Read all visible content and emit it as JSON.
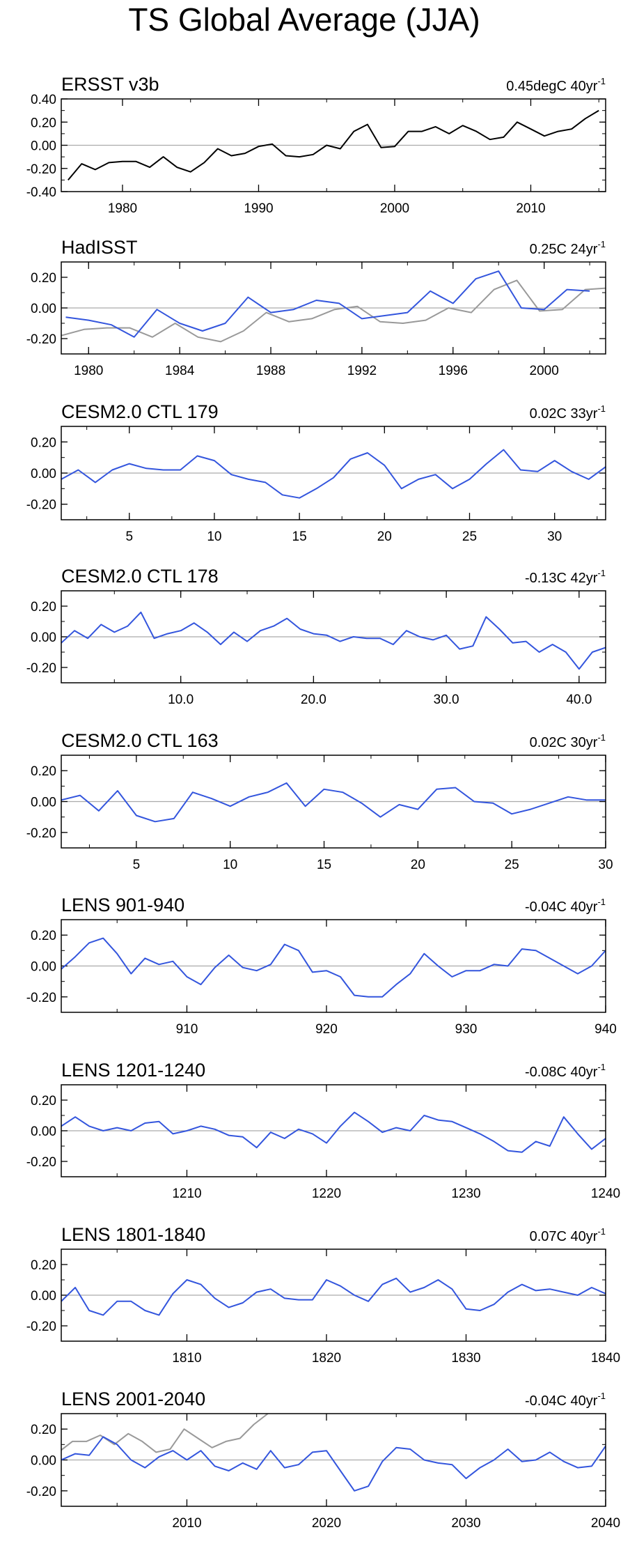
{
  "page_title": "TS Global Average (JJA)",
  "colors": {
    "black": "#000000",
    "gray": "#999999",
    "blue": "#3355dd",
    "zero": "#aaaaaa"
  },
  "chart_data": [
    {
      "type": "line",
      "title": "ERSST v3b",
      "trend_text": "0.45degC 40yr",
      "trend_sup": "-1",
      "xlim": [
        1975.5,
        2015.5
      ],
      "ylim": [
        -0.4,
        0.4
      ],
      "xticks": [
        1980,
        1990,
        2000,
        2010
      ],
      "xtick_labels": [
        "1980",
        "1990",
        "2000",
        "2010"
      ],
      "yticks": [
        -0.4,
        -0.2,
        0.0,
        0.2,
        0.4
      ],
      "ytick_labels": [
        "-0.40",
        "-0.20",
        "0.00",
        "0.20",
        "0.40"
      ],
      "x_start": 1976,
      "series": [
        {
          "name": "ERSST v3b",
          "color": "#000000",
          "values": [
            -0.3,
            -0.16,
            -0.21,
            -0.15,
            -0.14,
            -0.14,
            -0.19,
            -0.1,
            -0.19,
            -0.23,
            -0.15,
            -0.03,
            -0.09,
            -0.07,
            -0.01,
            0.01,
            -0.09,
            -0.1,
            -0.08,
            0.0,
            -0.03,
            0.12,
            0.18,
            -0.02,
            -0.01,
            0.12,
            0.12,
            0.16,
            0.1,
            0.17,
            0.12,
            0.05,
            0.07,
            0.2,
            0.14,
            0.08,
            0.12,
            0.14,
            0.23,
            0.3
          ]
        }
      ]
    },
    {
      "type": "line",
      "title": "HadISST",
      "trend_text": "0.25C 24yr",
      "trend_sup": "-1",
      "xlim": [
        1978.8,
        2002.7
      ],
      "ylim": [
        -0.3,
        0.3
      ],
      "xticks": [
        1980,
        1984,
        1988,
        1992,
        1996,
        2000
      ],
      "xtick_labels": [
        "1980",
        "1984",
        "1988",
        "1992",
        "1996",
        "2000"
      ],
      "yticks": [
        -0.2,
        0.0,
        0.2
      ],
      "ytick_labels": [
        "-0.20",
        "0.00",
        "0.20"
      ],
      "series": [
        {
          "name": "ERSST overlay",
          "color": "#999999",
          "x_start": 1978.8,
          "values": [
            -0.18,
            -0.14,
            -0.13,
            -0.13,
            -0.19,
            -0.1,
            -0.19,
            -0.22,
            -0.15,
            -0.03,
            -0.09,
            -0.07,
            -0.01,
            0.01,
            -0.09,
            -0.1,
            -0.08,
            0.0,
            -0.03,
            0.12,
            0.18,
            -0.02,
            -0.01,
            0.12,
            0.13
          ]
        },
        {
          "name": "HadISST",
          "color": "#3355dd",
          "x_start": 1979,
          "values": [
            -0.06,
            -0.08,
            -0.11,
            -0.19,
            -0.01,
            -0.1,
            -0.15,
            -0.1,
            0.07,
            -0.03,
            -0.01,
            0.05,
            0.03,
            -0.07,
            -0.05,
            -0.03,
            0.11,
            0.03,
            0.19,
            0.24,
            0.0,
            -0.01,
            0.12,
            0.11
          ]
        }
      ]
    },
    {
      "type": "line",
      "title": "CESM2.0 CTL 179",
      "trend_text": "0.02C 33yr",
      "trend_sup": "-1",
      "xlim": [
        1,
        33
      ],
      "ylim": [
        -0.3,
        0.3
      ],
      "xticks": [
        5,
        10,
        15,
        20,
        25,
        30
      ],
      "xtick_labels": [
        "5",
        "10",
        "15",
        "20",
        "25",
        "30"
      ],
      "yticks": [
        -0.2,
        0.0,
        0.2
      ],
      "ytick_labels": [
        "-0.20",
        "0.00",
        "0.20"
      ],
      "x_start": 1,
      "series": [
        {
          "name": "CTL 179",
          "color": "#3355dd",
          "values": [
            -0.04,
            0.02,
            -0.06,
            0.02,
            0.06,
            0.03,
            0.02,
            0.02,
            0.11,
            0.08,
            -0.01,
            -0.04,
            -0.06,
            -0.14,
            -0.16,
            -0.1,
            -0.03,
            0.09,
            0.13,
            0.05,
            -0.1,
            -0.04,
            -0.01,
            -0.1,
            -0.04,
            0.06,
            0.15,
            0.02,
            0.01,
            0.08,
            0.01,
            -0.04,
            0.04
          ]
        }
      ]
    },
    {
      "type": "line",
      "title": "CESM2.0 CTL 178",
      "trend_text": "-0.13C 42yr",
      "trend_sup": "-1",
      "xlim": [
        1,
        42
      ],
      "ylim": [
        -0.3,
        0.3
      ],
      "xticks": [
        10,
        20,
        30,
        40
      ],
      "xtick_labels": [
        "10.0",
        "20.0",
        "30.0",
        "40.0"
      ],
      "yticks": [
        -0.2,
        0.0,
        0.2
      ],
      "ytick_labels": [
        "-0.20",
        "0.00",
        "0.20"
      ],
      "x_start": 1,
      "series": [
        {
          "name": "CTL 178",
          "color": "#3355dd",
          "values": [
            -0.04,
            0.04,
            -0.01,
            0.08,
            0.03,
            0.07,
            0.16,
            -0.01,
            0.02,
            0.04,
            0.09,
            0.03,
            -0.05,
            0.03,
            -0.03,
            0.04,
            0.07,
            0.12,
            0.05,
            0.02,
            0.01,
            -0.03,
            0.0,
            -0.01,
            -0.01,
            -0.05,
            0.04,
            0.0,
            -0.02,
            0.01,
            -0.08,
            -0.06,
            0.13,
            0.05,
            -0.04,
            -0.03,
            -0.1,
            -0.05,
            -0.1,
            -0.21,
            -0.1,
            -0.07
          ]
        }
      ]
    },
    {
      "type": "line",
      "title": "CESM2.0 CTL 163",
      "trend_text": "0.02C 30yr",
      "trend_sup": "-1",
      "xlim": [
        1,
        30
      ],
      "ylim": [
        -0.3,
        0.3
      ],
      "xticks": [
        5,
        10,
        15,
        20,
        25,
        30
      ],
      "xtick_labels": [
        "5",
        "10",
        "15",
        "20",
        "25",
        "30"
      ],
      "yticks": [
        -0.2,
        0.0,
        0.2
      ],
      "ytick_labels": [
        "-0.20",
        "0.00",
        "0.20"
      ],
      "x_start": 1,
      "series": [
        {
          "name": "CTL 163",
          "color": "#3355dd",
          "values": [
            0.01,
            0.04,
            -0.06,
            0.07,
            -0.09,
            -0.13,
            -0.11,
            0.06,
            0.02,
            -0.03,
            0.03,
            0.06,
            0.12,
            -0.03,
            0.08,
            0.06,
            -0.01,
            -0.1,
            -0.02,
            -0.05,
            0.08,
            0.09,
            0.0,
            -0.01,
            -0.08,
            -0.05,
            -0.01,
            0.03,
            0.01,
            0.01
          ]
        }
      ]
    },
    {
      "type": "line",
      "title": "LENS 901-940",
      "trend_text": "-0.04C 40yr",
      "trend_sup": "-1",
      "xlim": [
        901,
        940
      ],
      "ylim": [
        -0.3,
        0.3
      ],
      "xticks": [
        910,
        920,
        930,
        940
      ],
      "xtick_labels": [
        "910",
        "920",
        "930",
        "940"
      ],
      "yticks": [
        -0.2,
        0.0,
        0.2
      ],
      "ytick_labels": [
        "-0.20",
        "0.00",
        "0.20"
      ],
      "x_start": 901,
      "series": [
        {
          "name": "LENS 901-940",
          "color": "#3355dd",
          "values": [
            -0.02,
            0.06,
            0.15,
            0.18,
            0.08,
            -0.05,
            0.05,
            0.01,
            0.03,
            -0.07,
            -0.12,
            -0.01,
            0.07,
            -0.01,
            -0.03,
            0.01,
            0.14,
            0.1,
            -0.04,
            -0.03,
            -0.07,
            -0.19,
            -0.2,
            -0.2,
            -0.12,
            -0.05,
            0.08,
            0.0,
            -0.07,
            -0.03,
            -0.03,
            0.01,
            0.0,
            0.11,
            0.1,
            0.05,
            0.0,
            -0.05,
            0.0,
            0.1
          ]
        }
      ]
    },
    {
      "type": "line",
      "title": "LENS 1201-1240",
      "trend_text": "-0.08C 40yr",
      "trend_sup": "-1",
      "xlim": [
        1201,
        1240
      ],
      "ylim": [
        -0.3,
        0.3
      ],
      "xticks": [
        1210,
        1220,
        1230,
        1240
      ],
      "xtick_labels": [
        "1210",
        "1220",
        "1230",
        "1240"
      ],
      "yticks": [
        -0.2,
        0.0,
        0.2
      ],
      "ytick_labels": [
        "-0.20",
        "0.00",
        "0.20"
      ],
      "x_start": 1201,
      "series": [
        {
          "name": "LENS 1201-1240",
          "color": "#3355dd",
          "values": [
            0.03,
            0.09,
            0.03,
            0.0,
            0.02,
            0.0,
            0.05,
            0.06,
            -0.02,
            0.0,
            0.03,
            0.01,
            -0.03,
            -0.04,
            -0.11,
            -0.01,
            -0.05,
            0.01,
            -0.02,
            -0.08,
            0.03,
            0.12,
            0.06,
            -0.01,
            0.02,
            0.0,
            0.1,
            0.07,
            0.06,
            0.02,
            -0.02,
            -0.07,
            -0.13,
            -0.14,
            -0.07,
            -0.1,
            0.09,
            -0.02,
            -0.12,
            -0.05
          ]
        }
      ]
    },
    {
      "type": "line",
      "title": "LENS 1801-1840",
      "trend_text": "0.07C 40yr",
      "trend_sup": "-1",
      "xlim": [
        1801,
        1840
      ],
      "ylim": [
        -0.3,
        0.3
      ],
      "xticks": [
        1810,
        1820,
        1830,
        1840
      ],
      "xtick_labels": [
        "1810",
        "1820",
        "1830",
        "1840"
      ],
      "yticks": [
        -0.2,
        0.0,
        0.2
      ],
      "ytick_labels": [
        "-0.20",
        "0.00",
        "0.20"
      ],
      "x_start": 1801,
      "series": [
        {
          "name": "LENS 1801-1840",
          "color": "#3355dd",
          "values": [
            -0.04,
            0.05,
            -0.1,
            -0.13,
            -0.04,
            -0.04,
            -0.1,
            -0.13,
            0.01,
            0.1,
            0.07,
            -0.02,
            -0.08,
            -0.05,
            0.02,
            0.04,
            -0.02,
            -0.03,
            -0.03,
            0.1,
            0.06,
            0.0,
            -0.04,
            0.07,
            0.11,
            0.02,
            0.05,
            0.1,
            0.04,
            -0.09,
            -0.1,
            -0.06,
            0.02,
            0.07,
            0.03,
            0.04,
            0.02,
            0.0,
            0.05,
            0.01
          ]
        }
      ]
    },
    {
      "type": "line",
      "title": "LENS 2001-2040",
      "trend_text": "-0.04C 40yr",
      "trend_sup": "-1",
      "xlim": [
        2001,
        2040
      ],
      "ylim": [
        -0.3,
        0.3
      ],
      "xticks": [
        2010,
        2020,
        2030,
        2040
      ],
      "xtick_labels": [
        "2010",
        "2020",
        "2030",
        "2040"
      ],
      "yticks": [
        -0.2,
        0.0,
        0.2
      ],
      "ytick_labels": [
        "-0.20",
        "0.00",
        "0.20"
      ],
      "series": [
        {
          "name": "ERSST overlay",
          "color": "#999999",
          "x_start": 2000.8,
          "values": [
            0.05,
            0.12,
            0.12,
            0.16,
            0.1,
            0.17,
            0.12,
            0.05,
            0.07,
            0.2,
            0.14,
            0.08,
            0.12,
            0.14,
            0.23,
            0.3
          ]
        },
        {
          "name": "LENS 2001-2040",
          "color": "#3355dd",
          "x_start": 2001,
          "values": [
            0.0,
            0.04,
            0.03,
            0.15,
            0.1,
            0.0,
            -0.05,
            0.02,
            0.06,
            0.0,
            0.06,
            -0.04,
            -0.07,
            -0.02,
            -0.06,
            0.06,
            -0.05,
            -0.03,
            0.05,
            0.06,
            -0.07,
            -0.2,
            -0.17,
            -0.01,
            0.08,
            0.07,
            0.0,
            -0.02,
            -0.03,
            -0.12,
            -0.05,
            0.0,
            0.07,
            -0.01,
            0.0,
            0.05,
            -0.01,
            -0.05,
            -0.04,
            0.09
          ]
        }
      ]
    }
  ]
}
